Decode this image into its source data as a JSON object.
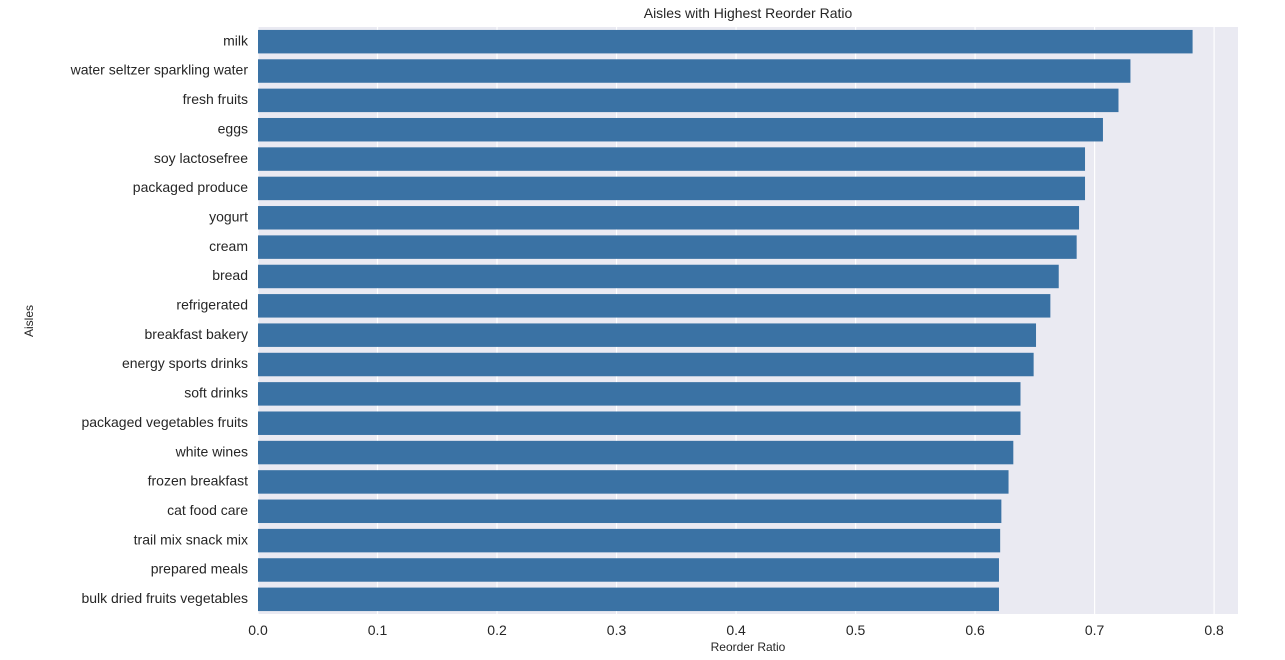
{
  "chart_data": {
    "type": "bar",
    "orientation": "horizontal",
    "title": "Aisles with Highest Reorder Ratio",
    "xlabel": "Reorder Ratio",
    "ylabel": "Aisles",
    "xlim": [
      0,
      0.82
    ],
    "xticks": [
      0.0,
      0.1,
      0.2,
      0.3,
      0.4,
      0.5,
      0.6,
      0.7,
      0.8
    ],
    "xtick_labels": [
      "0.0",
      "0.1",
      "0.2",
      "0.3",
      "0.4",
      "0.5",
      "0.6",
      "0.7",
      "0.8"
    ],
    "grid": true,
    "categories": [
      "milk",
      "water seltzer sparkling water",
      "fresh fruits",
      "eggs",
      "soy lactosefree",
      "packaged produce",
      "yogurt",
      "cream",
      "bread",
      "refrigerated",
      "breakfast bakery",
      "energy sports drinks",
      "soft drinks",
      "packaged vegetables fruits",
      "white wines",
      "frozen breakfast",
      "cat food care",
      "trail mix snack mix",
      "prepared meals",
      "bulk dried fruits vegetables"
    ],
    "values": [
      0.782,
      0.73,
      0.72,
      0.707,
      0.692,
      0.692,
      0.687,
      0.685,
      0.67,
      0.663,
      0.651,
      0.649,
      0.638,
      0.638,
      0.632,
      0.628,
      0.622,
      0.621,
      0.62,
      0.62
    ],
    "colors": {
      "bar": "#3a72a4",
      "plot_background": "#eaeaf2",
      "grid": "#ffffff",
      "text": "#262626"
    }
  }
}
